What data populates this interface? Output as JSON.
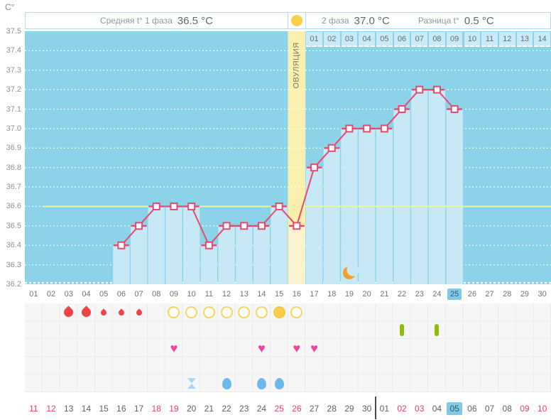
{
  "header": {
    "unit": "C°",
    "phase1_label": "Средняя t° 1 фаза",
    "phase1_value": "36.5 °C",
    "phase2_label": "2 фаза",
    "phase2_value": "37.0 °C",
    "diff_label": "Разница t°",
    "diff_value": "0.5 °C",
    "ovulation_label": "ОВУЛЯЦИЯ"
  },
  "colors": {
    "chart_background": "#8CD3E9",
    "bar_fill": "#C7E9F6",
    "ovulation_band": "#F9EFAE",
    "ovulation_band_bar": "#FAF3D0",
    "temperature_line": "#E8496E",
    "marker_fill": "#FFFFFF",
    "coverline": "#EDF2A5",
    "gridline": "#FFFFFF",
    "day_highlight": "#7ECBE9",
    "weekend_red": "#EE3F63",
    "menstruation_red": "#F04444",
    "test_circle_yellow": "#F3D65C",
    "test_positive_yellow": "#F8CE4B",
    "pill_green": "#8FBA10",
    "heart_pink": "#F4419E",
    "fluid_blue": "#6FB8EA",
    "hourglass_blue": "#A9D7F2",
    "moon_orange": "#EFA02F"
  },
  "chart_data": {
    "type": "line",
    "title": "Basal body temperature cycle chart",
    "ylabel": "C°",
    "ylim": [
      36.2,
      37.5
    ],
    "yticks": [
      "37.5",
      "37.4",
      "37.3",
      "37.2",
      "37.1",
      "37.0",
      "36.9",
      "36.8",
      "36.7",
      "36.6",
      "36.5",
      "36.4",
      "36.3",
      "36.2"
    ],
    "grid": "dotted horizontal lines every 0.1 °C",
    "cycle_days": [
      "01",
      "02",
      "03",
      "04",
      "05",
      "06",
      "07",
      "08",
      "09",
      "10",
      "11",
      "12",
      "13",
      "14",
      "15",
      "16",
      "17",
      "18",
      "19",
      "20",
      "21",
      "22",
      "23",
      "24",
      "25",
      "26",
      "27",
      "28",
      "29",
      "30"
    ],
    "series": [
      {
        "name": "temperature",
        "points": [
          {
            "day": 6,
            "value": 36.4
          },
          {
            "day": 7,
            "value": 36.5
          },
          {
            "day": 8,
            "value": 36.6
          },
          {
            "day": 9,
            "value": 36.6
          },
          {
            "day": 10,
            "value": 36.6
          },
          {
            "day": 11,
            "value": 36.4
          },
          {
            "day": 12,
            "value": 36.5
          },
          {
            "day": 13,
            "value": 36.5
          },
          {
            "day": 14,
            "value": 36.5
          },
          {
            "day": 15,
            "value": 36.6
          },
          {
            "day": 16,
            "value": 36.5
          },
          {
            "day": 17,
            "value": 36.8
          },
          {
            "day": 18,
            "value": 36.9
          },
          {
            "day": 19,
            "value": 37.0
          },
          {
            "day": 20,
            "value": 37.0
          },
          {
            "day": 21,
            "value": 37.0
          },
          {
            "day": 22,
            "value": 37.1
          },
          {
            "day": 23,
            "value": 37.2
          },
          {
            "day": 24,
            "value": 37.2
          },
          {
            "day": 25,
            "value": 37.1
          }
        ]
      }
    ],
    "coverline_value": 36.6,
    "ovulation_day": 16,
    "luteal_day_labels": [
      "01",
      "02",
      "03",
      "04",
      "05",
      "06",
      "07",
      "08",
      "09",
      "10",
      "11",
      "12",
      "13",
      "14"
    ],
    "luteal_start_day": 17,
    "current_cycle_day": "25",
    "moon_icon_day": 19
  },
  "events": {
    "rows": [
      {
        "name": "menstruation-and-ovulation-tests",
        "items": [
          {
            "day": 3,
            "icon": "menstruation-heavy"
          },
          {
            "day": 4,
            "icon": "menstruation-heavy"
          },
          {
            "day": 5,
            "icon": "menstruation-light"
          },
          {
            "day": 6,
            "icon": "menstruation-light"
          },
          {
            "day": 7,
            "icon": "menstruation-light"
          },
          {
            "day": 9,
            "icon": "ovulation-test-negative"
          },
          {
            "day": 10,
            "icon": "ovulation-test-negative"
          },
          {
            "day": 11,
            "icon": "ovulation-test-negative"
          },
          {
            "day": 12,
            "icon": "ovulation-test-negative"
          },
          {
            "day": 13,
            "icon": "ovulation-test-negative"
          },
          {
            "day": 14,
            "icon": "ovulation-test-negative"
          },
          {
            "day": 15,
            "icon": "ovulation-test-positive"
          },
          {
            "day": 16,
            "icon": "ovulation-test-negative"
          }
        ]
      },
      {
        "name": "medication",
        "items": [
          {
            "day": 22,
            "icon": "pill"
          },
          {
            "day": 24,
            "icon": "pill"
          }
        ]
      },
      {
        "name": "intimacy",
        "items": [
          {
            "day": 9,
            "icon": "heart"
          },
          {
            "day": 14,
            "icon": "heart"
          },
          {
            "day": 16,
            "icon": "heart"
          },
          {
            "day": 17,
            "icon": "heart"
          }
        ]
      },
      {
        "name": "empty-row",
        "items": []
      },
      {
        "name": "discharge",
        "items": [
          {
            "day": 10,
            "icon": "hourglass"
          },
          {
            "day": 12,
            "icon": "ovum"
          },
          {
            "day": 14,
            "icon": "ovum"
          },
          {
            "day": 15,
            "icon": "ovum"
          }
        ]
      }
    ]
  },
  "calendar": {
    "dates": [
      {
        "label": "11",
        "weekend": true
      },
      {
        "label": "12",
        "weekend": true
      },
      {
        "label": "13"
      },
      {
        "label": "14"
      },
      {
        "label": "15"
      },
      {
        "label": "16"
      },
      {
        "label": "17"
      },
      {
        "label": "18",
        "weekend": true
      },
      {
        "label": "19",
        "weekend": true
      },
      {
        "label": "20"
      },
      {
        "label": "21"
      },
      {
        "label": "22"
      },
      {
        "label": "23"
      },
      {
        "label": "24"
      },
      {
        "label": "25",
        "weekend": true
      },
      {
        "label": "26",
        "weekend": true
      },
      {
        "label": "27"
      },
      {
        "label": "28"
      },
      {
        "label": "29"
      },
      {
        "label": "30"
      },
      {
        "label": "01",
        "month_break": true
      },
      {
        "label": "02",
        "weekend": true
      },
      {
        "label": "03",
        "weekend": true
      },
      {
        "label": "04"
      },
      {
        "label": "05",
        "today": true
      },
      {
        "label": "06"
      },
      {
        "label": "07"
      },
      {
        "label": "08"
      },
      {
        "label": "09",
        "weekend": true
      },
      {
        "label": "10",
        "weekend": true
      }
    ]
  },
  "icons": {
    "heart_glyph": "♥"
  }
}
